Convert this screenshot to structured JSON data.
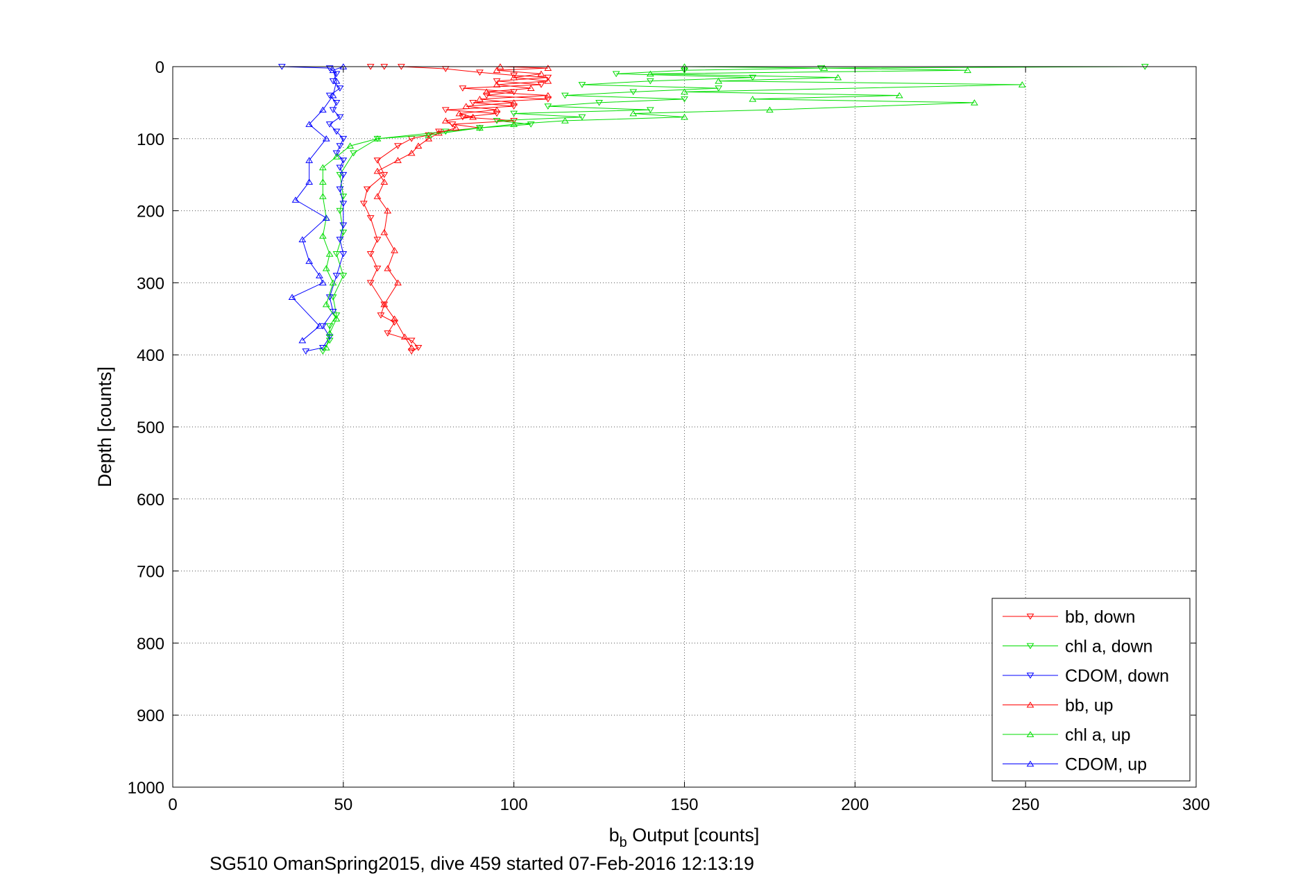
{
  "chart_data": {
    "type": "line",
    "title": "",
    "xlabel_main": "b",
    "xlabel_sub": "b",
    "xlabel_rest": " Output [counts]",
    "ylabel": "Depth [counts]",
    "caption": "SG510 OmanSpring2015, dive 459 started 07-Feb-2016 12:13:19",
    "xlim": [
      0,
      300
    ],
    "ylim": [
      0,
      1000
    ],
    "y_reversed": true,
    "grid": true,
    "legend_position": "bottom-right",
    "xticks": [
      "0",
      "50",
      "100",
      "150",
      "200",
      "250",
      "300"
    ],
    "yticks": [
      "0",
      "100",
      "200",
      "300",
      "400",
      "500",
      "600",
      "700",
      "800",
      "900",
      "1000"
    ],
    "series": [
      {
        "name": "bb, down",
        "color": "#ff0000",
        "marker": "triangle-down",
        "points": [
          [
            58,
            0
          ],
          [
            62,
            0
          ],
          [
            67,
            0
          ],
          [
            80,
            3
          ],
          [
            90,
            8
          ],
          [
            100,
            12
          ],
          [
            110,
            15
          ],
          [
            95,
            20
          ],
          [
            108,
            25
          ],
          [
            85,
            30
          ],
          [
            100,
            35
          ],
          [
            92,
            40
          ],
          [
            110,
            45
          ],
          [
            88,
            50
          ],
          [
            100,
            55
          ],
          [
            80,
            60
          ],
          [
            95,
            65
          ],
          [
            85,
            70
          ],
          [
            100,
            75
          ],
          [
            82,
            80
          ],
          [
            90,
            85
          ],
          [
            78,
            90
          ],
          [
            75,
            95
          ],
          [
            70,
            100
          ],
          [
            66,
            110
          ],
          [
            60,
            130
          ],
          [
            62,
            150
          ],
          [
            57,
            170
          ],
          [
            56,
            190
          ],
          [
            58,
            210
          ],
          [
            60,
            240
          ],
          [
            58,
            260
          ],
          [
            60,
            280
          ],
          [
            58,
            300
          ],
          [
            62,
            330
          ],
          [
            61,
            345
          ],
          [
            65,
            355
          ],
          [
            63,
            370
          ],
          [
            70,
            380
          ],
          [
            72,
            390
          ],
          [
            70,
            395
          ]
        ]
      },
      {
        "name": "chl a, down",
        "color": "#00dd00",
        "marker": "triangle-down",
        "points": [
          [
            285,
            0
          ],
          [
            190,
            2
          ],
          [
            150,
            5
          ],
          [
            130,
            10
          ],
          [
            170,
            15
          ],
          [
            140,
            20
          ],
          [
            120,
            25
          ],
          [
            160,
            30
          ],
          [
            135,
            35
          ],
          [
            115,
            40
          ],
          [
            150,
            45
          ],
          [
            125,
            50
          ],
          [
            110,
            55
          ],
          [
            140,
            60
          ],
          [
            100,
            65
          ],
          [
            120,
            70
          ],
          [
            95,
            75
          ],
          [
            105,
            80
          ],
          [
            90,
            85
          ],
          [
            80,
            90
          ],
          [
            60,
            100
          ],
          [
            53,
            120
          ],
          [
            49,
            150
          ],
          [
            50,
            180
          ],
          [
            49,
            200
          ],
          [
            50,
            230
          ],
          [
            48,
            260
          ],
          [
            50,
            290
          ],
          [
            47,
            320
          ],
          [
            48,
            345
          ],
          [
            46,
            360
          ],
          [
            46,
            380
          ],
          [
            44,
            395
          ]
        ]
      },
      {
        "name": "CDOM, down",
        "color": "#0000ff",
        "marker": "triangle-down",
        "points": [
          [
            32,
            0
          ],
          [
            46,
            2
          ],
          [
            48,
            10
          ],
          [
            47,
            20
          ],
          [
            49,
            30
          ],
          [
            46,
            40
          ],
          [
            48,
            50
          ],
          [
            47,
            60
          ],
          [
            49,
            70
          ],
          [
            46,
            80
          ],
          [
            48,
            90
          ],
          [
            50,
            100
          ],
          [
            49,
            110
          ],
          [
            48,
            120
          ],
          [
            50,
            130
          ],
          [
            49,
            140
          ],
          [
            50,
            150
          ],
          [
            49,
            170
          ],
          [
            50,
            190
          ],
          [
            50,
            220
          ],
          [
            49,
            240
          ],
          [
            50,
            260
          ],
          [
            48,
            290
          ],
          [
            46,
            320
          ],
          [
            47,
            340
          ],
          [
            44,
            360
          ],
          [
            46,
            375
          ],
          [
            44,
            390
          ],
          [
            39,
            395
          ]
        ]
      },
      {
        "name": "bb, up",
        "color": "#ff0000",
        "marker": "triangle-up",
        "points": [
          [
            70,
            390
          ],
          [
            68,
            375
          ],
          [
            65,
            350
          ],
          [
            62,
            330
          ],
          [
            66,
            300
          ],
          [
            63,
            280
          ],
          [
            65,
            255
          ],
          [
            62,
            230
          ],
          [
            63,
            200
          ],
          [
            60,
            180
          ],
          [
            62,
            160
          ],
          [
            60,
            145
          ],
          [
            66,
            130
          ],
          [
            70,
            120
          ],
          [
            72,
            110
          ],
          [
            75,
            100
          ],
          [
            78,
            92
          ],
          [
            83,
            85
          ],
          [
            80,
            75
          ],
          [
            88,
            70
          ],
          [
            84,
            65
          ],
          [
            95,
            60
          ],
          [
            86,
            55
          ],
          [
            100,
            50
          ],
          [
            90,
            45
          ],
          [
            110,
            40
          ],
          [
            92,
            35
          ],
          [
            105,
            30
          ],
          [
            95,
            25
          ],
          [
            110,
            20
          ],
          [
            100,
            15
          ],
          [
            108,
            10
          ],
          [
            95,
            5
          ],
          [
            110,
            2
          ],
          [
            96,
            0
          ]
        ]
      },
      {
        "name": "chl a, up",
        "color": "#00dd00",
        "marker": "triangle-up",
        "points": [
          [
            45,
            390
          ],
          [
            46,
            370
          ],
          [
            48,
            350
          ],
          [
            45,
            330
          ],
          [
            47,
            300
          ],
          [
            45,
            280
          ],
          [
            46,
            260
          ],
          [
            44,
            235
          ],
          [
            45,
            210
          ],
          [
            44,
            180
          ],
          [
            44,
            160
          ],
          [
            44,
            140
          ],
          [
            48,
            125
          ],
          [
            52,
            110
          ],
          [
            60,
            100
          ],
          [
            75,
            95
          ],
          [
            90,
            85
          ],
          [
            100,
            80
          ],
          [
            115,
            75
          ],
          [
            150,
            70
          ],
          [
            135,
            65
          ],
          [
            175,
            60
          ],
          [
            235,
            50
          ],
          [
            170,
            45
          ],
          [
            213,
            40
          ],
          [
            150,
            35
          ],
          [
            249,
            25
          ],
          [
            160,
            20
          ],
          [
            195,
            15
          ],
          [
            140,
            10
          ],
          [
            233,
            5
          ],
          [
            191,
            2
          ],
          [
            150,
            0
          ]
        ]
      },
      {
        "name": "CDOM, up",
        "color": "#0000ff",
        "marker": "triangle-up",
        "points": [
          [
            38,
            380
          ],
          [
            43,
            360
          ],
          [
            35,
            320
          ],
          [
            44,
            300
          ],
          [
            43,
            290
          ],
          [
            40,
            270
          ],
          [
            38,
            240
          ],
          [
            45,
            210
          ],
          [
            36,
            185
          ],
          [
            40,
            160
          ],
          [
            40,
            130
          ],
          [
            45,
            100
          ],
          [
            40,
            80
          ],
          [
            44,
            60
          ],
          [
            47,
            40
          ],
          [
            48,
            20
          ],
          [
            47,
            5
          ],
          [
            50,
            0
          ]
        ]
      }
    ]
  }
}
